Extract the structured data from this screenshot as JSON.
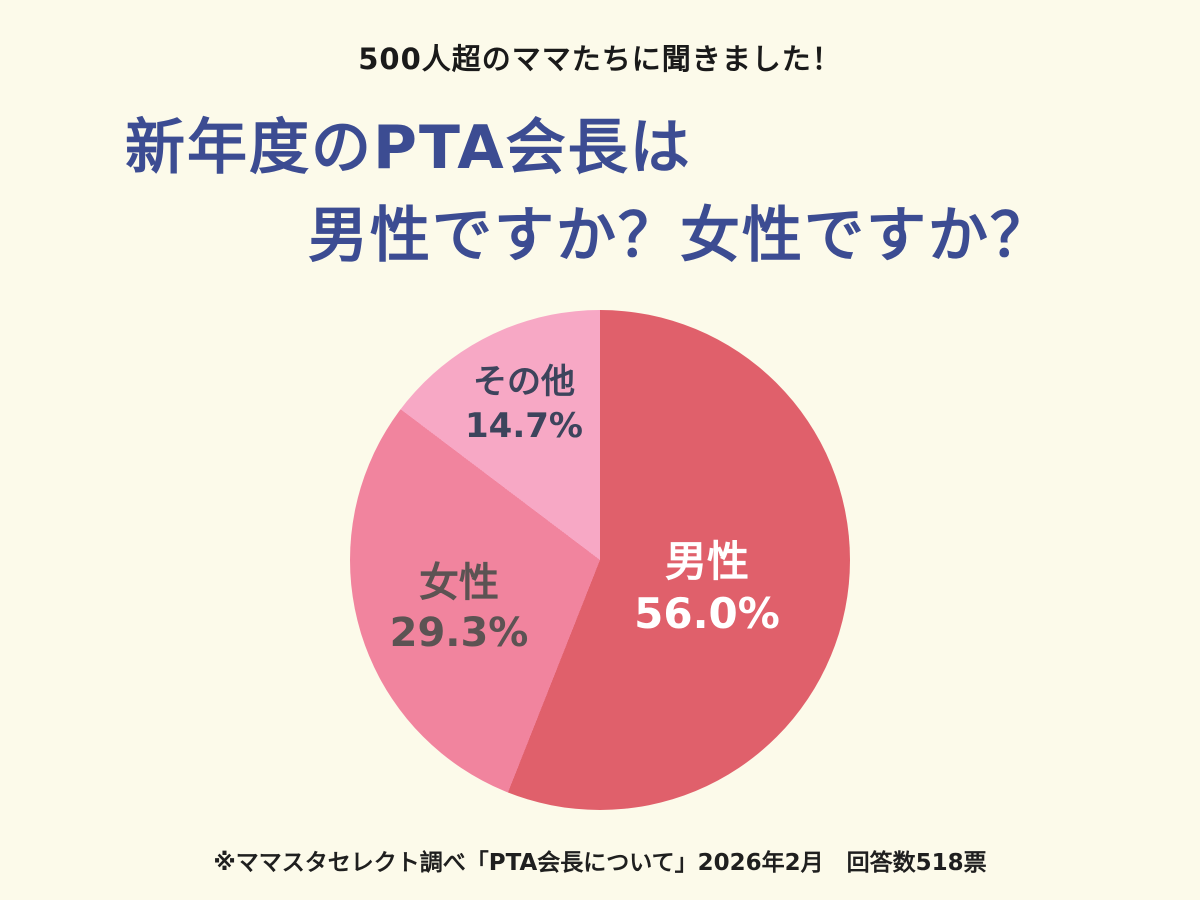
{
  "page": {
    "background": "#FCFAEA",
    "header": "500人超のママたちに聞きました！",
    "title_line1": "新年度のPTA会長は",
    "title_line2": "男性ですか？女性ですか？",
    "title_color": "#3C4C92",
    "source_note": "※ママスタセレクト調べ「PTA会長について」2026年2月　回答数518票"
  },
  "chart_data": {
    "type": "pie",
    "title": "新年度のPTA会長は男性ですか？女性ですか？",
    "subtitle": "500人超のママたちに聞きました！",
    "source": "※ママスタセレクト調べ「PTA会長について」2026年2月　回答数518票",
    "respondents": 518,
    "start_angle_deg": 0,
    "direction": "clockwise",
    "legend": "none",
    "slices": [
      {
        "label": "男性",
        "value_pct": 56.0,
        "display": "56.0%",
        "color": "#E0606B",
        "label_color": "#FFFFFF"
      },
      {
        "label": "女性",
        "value_pct": 29.3,
        "display": "29.3%",
        "color": "#F1849E",
        "label_color": "#5C5353"
      },
      {
        "label": "その他",
        "value_pct": 14.7,
        "display": "14.7%",
        "color": "#F7A8C5",
        "label_color": "#3D445C"
      }
    ]
  }
}
